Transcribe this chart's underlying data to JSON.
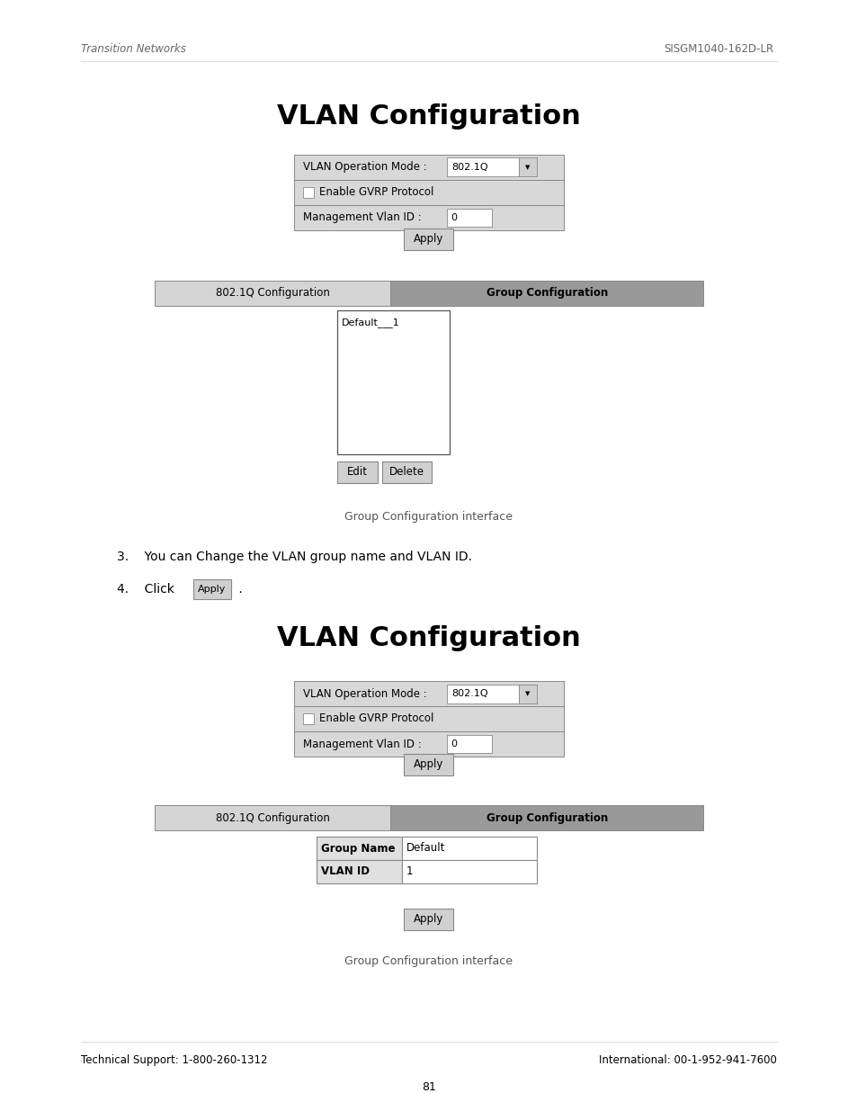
{
  "page_width": 9.54,
  "page_height": 12.35,
  "bg_color": "#ffffff",
  "header_left": "Transition Networks",
  "header_right": "SISGM1040-162D-LR",
  "header_color": "#666666",
  "title1": "VLAN Configuration",
  "title2": "VLAN Configuration",
  "vlan_op_label": "VLAN Operation Mode :",
  "vlan_op_value": "802.1Q",
  "gvrp_label": "Enable GVRP Protocol",
  "mgmt_label": "Management Vlan ID :",
  "mgmt_value": "0",
  "apply_label": "Apply",
  "tab1_label": "802.1Q Configuration",
  "tab2_label": "Group Configuration",
  "listbox_item": "Default___1",
  "edit_btn": "Edit",
  "delete_btn": "Delete",
  "caption": "Group Configuration interface",
  "step3": "3.    You can Change the VLAN group name and VLAN ID.",
  "step4_pre": "4.    Click",
  "step4_btn": "Apply",
  "step4_post": " .",
  "group_name_label": "Group Name",
  "group_name_value": "Default",
  "vlan_id_label": "VLAN ID",
  "vlan_id_value": "1",
  "footer_left": "Technical Support: 1-800-260-1312",
  "footer_right": "International: 00-1-952-941-7600",
  "page_num": "81",
  "tab1_color": "#d4d4d4",
  "tab2_color": "#999999",
  "form_bg": "#d8d8d8",
  "input_bg": "#ffffff",
  "btn_bg": "#d0d0d0",
  "border_color": "#888888",
  "dark_border": "#555555",
  "text_color": "#000000",
  "header_font_size": 8.5,
  "title_font_size": 22,
  "body_font_size": 10,
  "caption_font_size": 9,
  "small_font_size": 8
}
